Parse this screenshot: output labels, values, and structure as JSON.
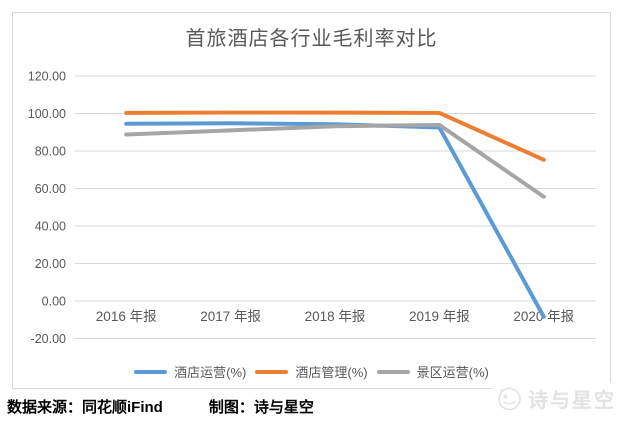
{
  "chart_data": {
    "type": "line",
    "title": "首旅酒店各行业毛利率对比",
    "categories": [
      "2016 年报",
      "2017 年报",
      "2018 年报",
      "2019 年报",
      "2020 年报"
    ],
    "series": [
      {
        "name": "酒店运营(%)",
        "color": "#5B9BD5",
        "values": [
          94.5,
          94.8,
          94.3,
          92.5,
          -8.4
        ]
      },
      {
        "name": "酒店管理(%)",
        "color": "#ED7D31",
        "values": [
          100.3,
          100.5,
          100.5,
          100.3,
          75.3
        ]
      },
      {
        "name": "景区运营(%)",
        "color": "#A5A5A5",
        "values": [
          88.8,
          91.0,
          93.2,
          93.9,
          55.6
        ]
      }
    ],
    "ylim": [
      -20,
      120
    ],
    "ytick_step": 20,
    "ytick_labels": [
      "120.00",
      "100.00",
      "80.00",
      "60.00",
      "40.00",
      "20.00",
      "0.00",
      "-20.00"
    ],
    "grid": true,
    "legend_position": "bottom",
    "styles": {
      "grid_color": "#d9d9d9",
      "axis_text_color": "#595959",
      "title_color": "#595959",
      "line_width": 4
    }
  },
  "footer": {
    "source": "数据来源：同花顺iFind",
    "credit": "制图：诗与星空"
  },
  "watermark": {
    "text": "诗与星空"
  }
}
